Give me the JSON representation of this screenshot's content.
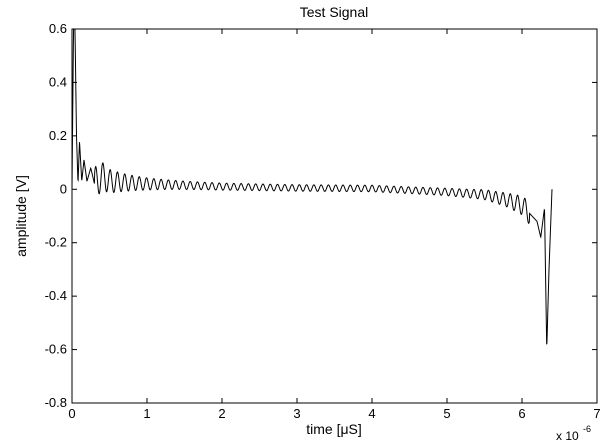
{
  "chart_data": {
    "type": "line",
    "title": "Test Signal",
    "xlabel": "time [μS]",
    "ylabel": "amplitude [V]",
    "x_exponent_base": "x 10",
    "x_exponent_power": "-6",
    "xlim": [
      0,
      7
    ],
    "ylim": [
      -0.8,
      0.6
    ],
    "x_ticks": [
      0,
      1,
      2,
      3,
      4,
      5,
      6,
      7
    ],
    "x_tick_labels": [
      "0",
      "1",
      "2",
      "3",
      "4",
      "5",
      "6",
      "7"
    ],
    "y_ticks": [
      -0.8,
      -0.6,
      -0.4,
      -0.2,
      0,
      0.2,
      0.4,
      0.6
    ],
    "y_tick_labels": [
      "-0.8",
      "-0.6",
      "-0.4",
      "-0.2",
      "0",
      "0.2",
      "0.4",
      "0.6"
    ],
    "grid": false,
    "line_color": "#000000",
    "series": [
      {
        "x": [
          0,
          0.02,
          0.04,
          0.06,
          0.08,
          0.1,
          0.13,
          0.16,
          0.2,
          0.25,
          0.3,
          0.4,
          0.5,
          0.7,
          1,
          1.5,
          2,
          3,
          4,
          5,
          5.5,
          5.8,
          6,
          6.1,
          6.2,
          6.25,
          6.3,
          6.33,
          6.36,
          6.4
        ],
        "y": [
          0,
          0.6,
          0.6,
          0.2,
          0.02,
          0.18,
          0.03,
          0.11,
          0.03,
          0.08,
          0.02,
          0.05,
          0.03,
          0.025,
          0.02,
          0.015,
          0.01,
          0.005,
          0.003,
          -0.01,
          -0.02,
          -0.04,
          -0.06,
          -0.09,
          -0.12,
          -0.18,
          -0.07,
          -0.6,
          -0.3,
          0
        ]
      }
    ]
  }
}
